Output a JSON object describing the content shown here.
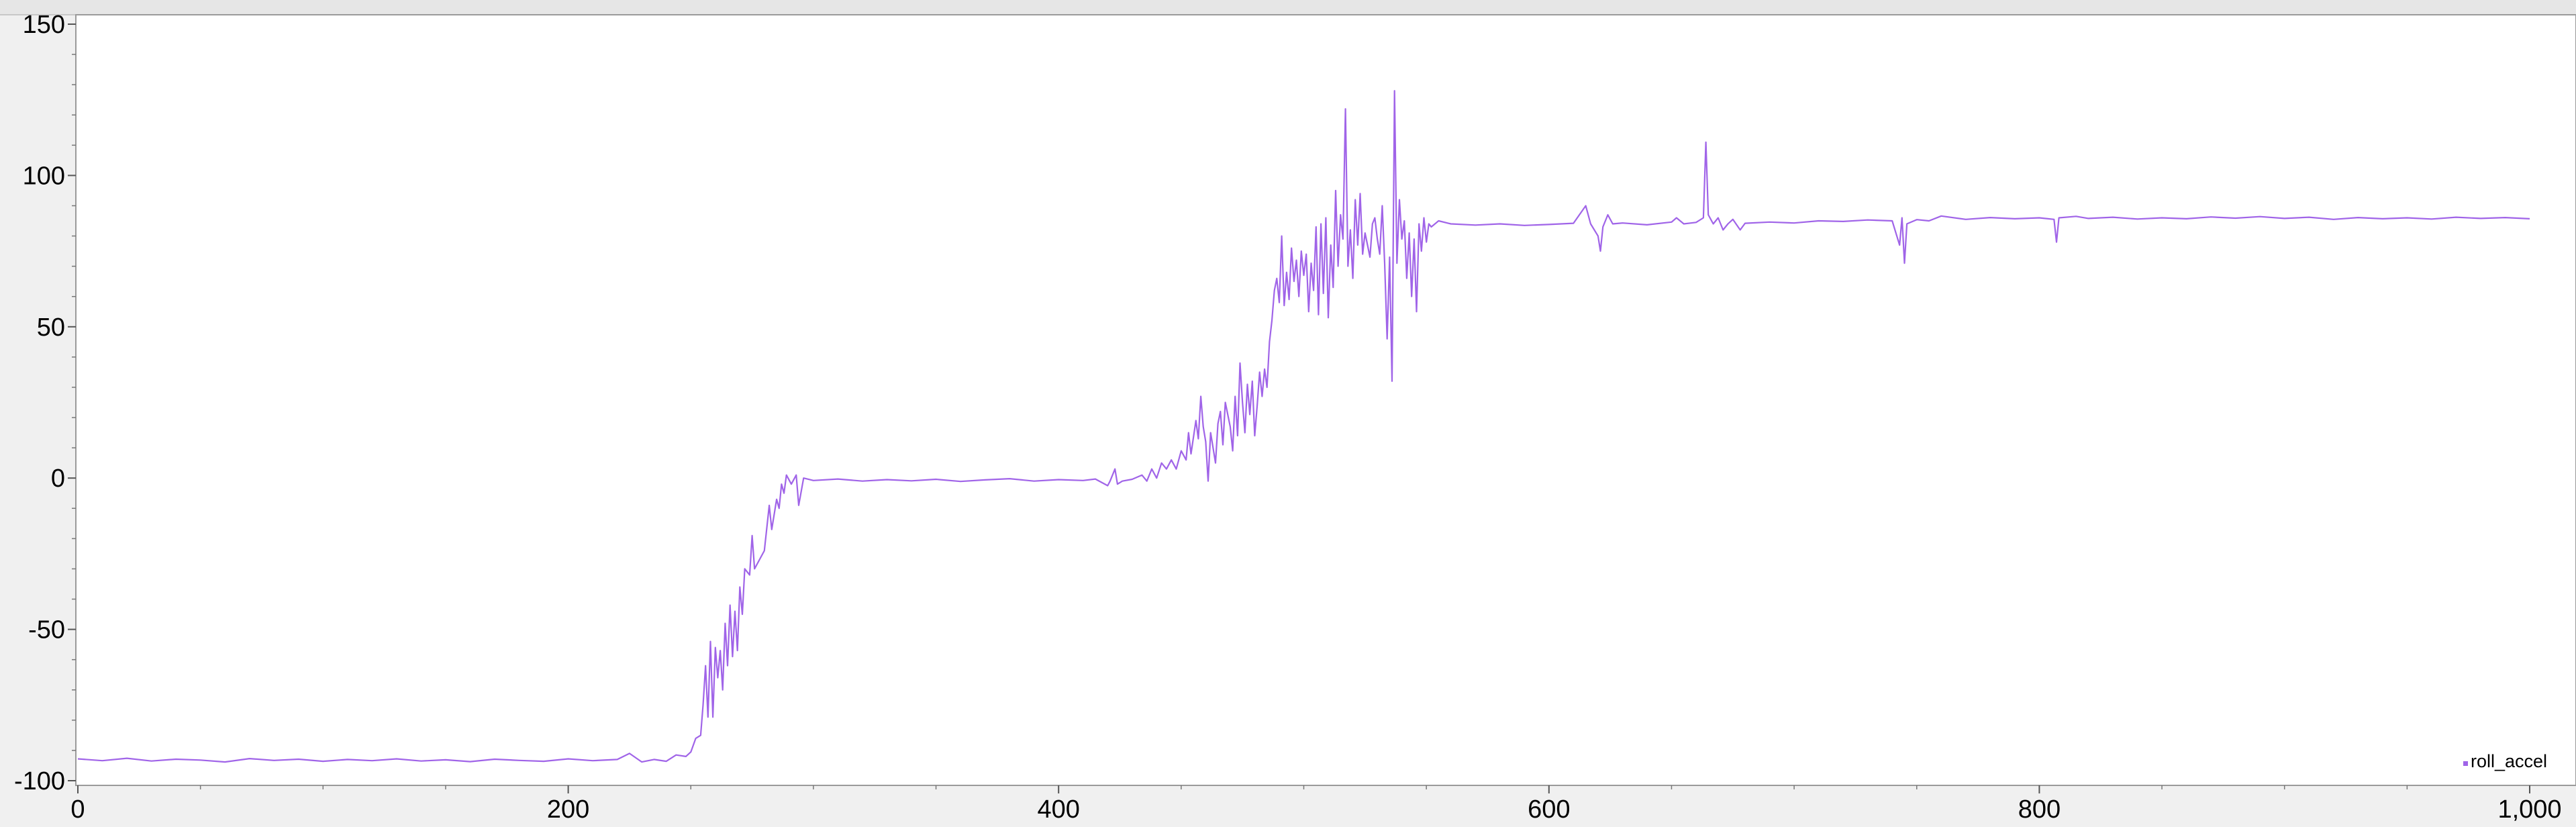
{
  "chart_data": {
    "type": "line",
    "title": "",
    "xlabel": "",
    "ylabel": "",
    "xlim": [
      0,
      1000
    ],
    "ylim": [
      -100,
      150
    ],
    "x_ticks": [
      0,
      200,
      400,
      600,
      800,
      1000
    ],
    "x_tick_labels": [
      "0",
      "200",
      "400",
      "600",
      "800",
      "1,000"
    ],
    "y_ticks": [
      150,
      100,
      50,
      0,
      -50,
      -100
    ],
    "y_tick_labels": [
      "150",
      "100",
      "50",
      "0",
      "-50",
      "-100"
    ],
    "grid": false,
    "legend_position": "bottom-right",
    "series": [
      {
        "name": "roll_accel",
        "color": "#a064e8",
        "points": [
          [
            0,
            -92.8
          ],
          [
            10,
            -93.4
          ],
          [
            20,
            -92.6
          ],
          [
            30,
            -93.5
          ],
          [
            40,
            -92.9
          ],
          [
            50,
            -93.2
          ],
          [
            60,
            -93.8
          ],
          [
            70,
            -92.7
          ],
          [
            80,
            -93.3
          ],
          [
            90,
            -92.9
          ],
          [
            100,
            -93.6
          ],
          [
            110,
            -93.0
          ],
          [
            120,
            -93.4
          ],
          [
            130,
            -92.8
          ],
          [
            140,
            -93.5
          ],
          [
            150,
            -93.1
          ],
          [
            160,
            -93.7
          ],
          [
            170,
            -92.9
          ],
          [
            180,
            -93.3
          ],
          [
            190,
            -93.6
          ],
          [
            200,
            -92.8
          ],
          [
            210,
            -93.4
          ],
          [
            220,
            -93.0
          ],
          [
            225,
            -91.0
          ],
          [
            230,
            -93.8
          ],
          [
            235,
            -93.0
          ],
          [
            240,
            -93.6
          ],
          [
            244,
            -91.5
          ],
          [
            248,
            -92.0
          ],
          [
            250,
            -90.5
          ],
          [
            252,
            -86.0
          ],
          [
            254,
            -85.0
          ],
          [
            255,
            -75.0
          ],
          [
            256,
            -62.0
          ],
          [
            257,
            -79.0
          ],
          [
            258,
            -54.0
          ],
          [
            259,
            -79.0
          ],
          [
            260,
            -56.0
          ],
          [
            261,
            -66.0
          ],
          [
            262,
            -57.0
          ],
          [
            263,
            -70.0
          ],
          [
            264,
            -48.0
          ],
          [
            265,
            -62.0
          ],
          [
            266,
            -42.0
          ],
          [
            267,
            -59.0
          ],
          [
            268,
            -44.0
          ],
          [
            269,
            -57.0
          ],
          [
            270,
            -36.0
          ],
          [
            271,
            -45.0
          ],
          [
            272,
            -30.0
          ],
          [
            274,
            -32.0
          ],
          [
            275,
            -19.0
          ],
          [
            276,
            -30.0
          ],
          [
            278,
            -27.0
          ],
          [
            280,
            -24.0
          ],
          [
            282,
            -9.0
          ],
          [
            283,
            -17.0
          ],
          [
            285,
            -7.0
          ],
          [
            286,
            -10.0
          ],
          [
            287,
            -2.0
          ],
          [
            288,
            -5.0
          ],
          [
            289,
            1.0
          ],
          [
            291,
            -2.0
          ],
          [
            293,
            1.0
          ],
          [
            294,
            -9.0
          ],
          [
            296,
            0.0
          ],
          [
            300,
            -0.8
          ],
          [
            310,
            -0.3
          ],
          [
            320,
            -1.0
          ],
          [
            330,
            -0.5
          ],
          [
            340,
            -0.9
          ],
          [
            350,
            -0.4
          ],
          [
            360,
            -1.1
          ],
          [
            370,
            -0.6
          ],
          [
            380,
            -0.2
          ],
          [
            390,
            -1.0
          ],
          [
            400,
            -0.5
          ],
          [
            410,
            -0.8
          ],
          [
            415,
            -0.3
          ],
          [
            420,
            -2.5
          ],
          [
            421,
            -1.0
          ],
          [
            423,
            3.0
          ],
          [
            424,
            -2.0
          ],
          [
            426,
            -1.0
          ],
          [
            430,
            -0.4
          ],
          [
            434,
            1.0
          ],
          [
            436,
            -1.0
          ],
          [
            438,
            3.0
          ],
          [
            440,
            0.0
          ],
          [
            442,
            5.0
          ],
          [
            444,
            3.0
          ],
          [
            446,
            6.0
          ],
          [
            448,
            3.0
          ],
          [
            450,
            9.0
          ],
          [
            452,
            6.0
          ],
          [
            453,
            15.0
          ],
          [
            454,
            8.0
          ],
          [
            456,
            19.0
          ],
          [
            457,
            13.0
          ],
          [
            458,
            27.0
          ],
          [
            459,
            17.0
          ],
          [
            460,
            12.0
          ],
          [
            461,
            -1.0
          ],
          [
            462,
            15.0
          ],
          [
            464,
            5.0
          ],
          [
            465,
            18.0
          ],
          [
            466,
            22.0
          ],
          [
            467,
            11.0
          ],
          [
            468,
            25.0
          ],
          [
            470,
            17.0
          ],
          [
            471,
            9.0
          ],
          [
            472,
            27.0
          ],
          [
            473,
            14.0
          ],
          [
            474,
            38.0
          ],
          [
            475,
            25.0
          ],
          [
            476,
            15.0
          ],
          [
            477,
            31.0
          ],
          [
            478,
            21.0
          ],
          [
            479,
            32.0
          ],
          [
            480,
            14.0
          ],
          [
            481,
            24.0
          ],
          [
            482,
            35.0
          ],
          [
            483,
            27.0
          ],
          [
            484,
            36.0
          ],
          [
            485,
            30.0
          ],
          [
            486,
            45.0
          ],
          [
            487,
            52.0
          ],
          [
            488,
            62.0
          ],
          [
            489,
            66.0
          ],
          [
            490,
            58.0
          ],
          [
            491,
            80.0
          ],
          [
            492,
            57.0
          ],
          [
            493,
            68.0
          ],
          [
            494,
            59.0
          ],
          [
            495,
            76.0
          ],
          [
            496,
            65.0
          ],
          [
            497,
            72.0
          ],
          [
            498,
            60.0
          ],
          [
            499,
            75.0
          ],
          [
            500,
            67.0
          ],
          [
            501,
            74.0
          ],
          [
            502,
            55.0
          ],
          [
            503,
            71.0
          ],
          [
            504,
            62.0
          ],
          [
            505,
            83.0
          ],
          [
            506,
            54.0
          ],
          [
            507,
            84.0
          ],
          [
            508,
            61.0
          ],
          [
            509,
            86.0
          ],
          [
            510,
            53.0
          ],
          [
            511,
            77.0
          ],
          [
            512,
            63.0
          ],
          [
            513,
            95.0
          ],
          [
            514,
            70.0
          ],
          [
            515,
            87.0
          ],
          [
            516,
            79.0
          ],
          [
            517,
            122.0
          ],
          [
            518,
            70.0
          ],
          [
            519,
            82.0
          ],
          [
            520,
            66.0
          ],
          [
            521,
            92.0
          ],
          [
            522,
            77.0
          ],
          [
            523,
            94.0
          ],
          [
            524,
            74.0
          ],
          [
            525,
            81.0
          ],
          [
            526,
            77.0
          ],
          [
            527,
            73.0
          ],
          [
            528,
            84.0
          ],
          [
            529,
            86.0
          ],
          [
            530,
            79.0
          ],
          [
            531,
            74.0
          ],
          [
            532,
            90.0
          ],
          [
            533,
            71.0
          ],
          [
            534,
            46.0
          ],
          [
            535,
            73.0
          ],
          [
            536,
            32.0
          ],
          [
            537,
            128.0
          ],
          [
            538,
            71.0
          ],
          [
            539,
            92.0
          ],
          [
            540,
            79.0
          ],
          [
            541,
            85.0
          ],
          [
            542,
            66.0
          ],
          [
            543,
            81.0
          ],
          [
            544,
            60.0
          ],
          [
            545,
            79.0
          ],
          [
            546,
            55.0
          ],
          [
            547,
            84.0
          ],
          [
            548,
            75.0
          ],
          [
            549,
            86.0
          ],
          [
            550,
            78.0
          ],
          [
            551,
            84.0
          ],
          [
            552,
            83.0
          ],
          [
            555,
            85.0
          ],
          [
            560,
            84.0
          ],
          [
            570,
            83.6
          ],
          [
            580,
            84.0
          ],
          [
            590,
            83.5
          ],
          [
            600,
            83.8
          ],
          [
            610,
            84.2
          ],
          [
            615,
            90.0
          ],
          [
            617,
            84.0
          ],
          [
            620,
            80.0
          ],
          [
            621,
            75.0
          ],
          [
            622,
            83.0
          ],
          [
            624,
            87.0
          ],
          [
            626,
            84.0
          ],
          [
            630,
            84.3
          ],
          [
            640,
            83.7
          ],
          [
            650,
            84.6
          ],
          [
            652,
            86.0
          ],
          [
            655,
            84.0
          ],
          [
            660,
            84.5
          ],
          [
            663,
            86.0
          ],
          [
            664,
            111.0
          ],
          [
            665,
            87.0
          ],
          [
            667,
            84.0
          ],
          [
            669,
            86.0
          ],
          [
            671,
            82.0
          ],
          [
            673,
            84.0
          ],
          [
            675,
            85.5
          ],
          [
            678,
            82.0
          ],
          [
            680,
            84.2
          ],
          [
            690,
            84.6
          ],
          [
            700,
            84.3
          ],
          [
            710,
            85.0
          ],
          [
            720,
            84.8
          ],
          [
            730,
            85.3
          ],
          [
            740,
            85.0
          ],
          [
            743,
            77.0
          ],
          [
            744,
            86.0
          ],
          [
            745,
            71.0
          ],
          [
            746,
            84.0
          ],
          [
            750,
            85.4
          ],
          [
            755,
            85.0
          ],
          [
            760,
            86.6
          ],
          [
            770,
            85.5
          ],
          [
            780,
            86.1
          ],
          [
            790,
            85.7
          ],
          [
            800,
            86.0
          ],
          [
            806,
            85.5
          ],
          [
            807,
            78.0
          ],
          [
            808,
            86.0
          ],
          [
            815,
            86.5
          ],
          [
            820,
            85.8
          ],
          [
            830,
            86.2
          ],
          [
            840,
            85.6
          ],
          [
            850,
            86.0
          ],
          [
            860,
            85.7
          ],
          [
            870,
            86.3
          ],
          [
            880,
            85.9
          ],
          [
            890,
            86.4
          ],
          [
            900,
            85.8
          ],
          [
            910,
            86.2
          ],
          [
            920,
            85.5
          ],
          [
            930,
            86.1
          ],
          [
            940,
            85.7
          ],
          [
            950,
            86.0
          ],
          [
            960,
            85.6
          ],
          [
            970,
            86.2
          ],
          [
            980,
            85.8
          ],
          [
            990,
            86.1
          ],
          [
            1000,
            85.7
          ]
        ]
      }
    ]
  }
}
